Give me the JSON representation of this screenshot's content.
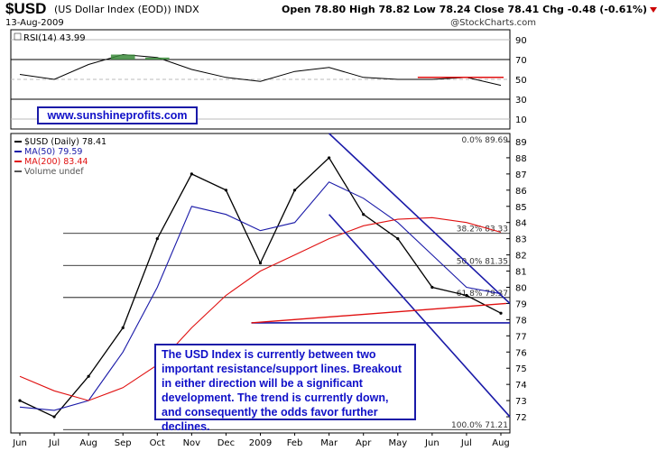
{
  "header": {
    "symbol": "$USD",
    "description": "(US Dollar Index (EOD)) INDX",
    "date": "13-Aug-2009",
    "ohlc_text": "Open 78.80 High 78.82 Low 78.24 Close 78.41 Chg -0.48 (-0.61%)",
    "source": "@StockCharts.com"
  },
  "rsi_panel": {
    "label": "RSI(14) 43.99",
    "ticks": [
      10,
      30,
      50,
      70,
      90
    ],
    "overbought": 70,
    "oversold": 30
  },
  "price_panel": {
    "legend": [
      "$USD (Daily) 78.41",
      "MA(50) 79.59",
      "MA(200) 83.44",
      "Volume undef"
    ],
    "ylim": [
      71,
      89.5
    ],
    "ticks": [
      72,
      73,
      74,
      75,
      76,
      77,
      78,
      79,
      80,
      81,
      82,
      83,
      84,
      85,
      86,
      87,
      88,
      89
    ],
    "x_labels": [
      "Jun",
      "Jul",
      "Aug",
      "Sep",
      "Oct",
      "Nov",
      "Dec",
      "2009",
      "Feb",
      "Mar",
      "Apr",
      "May",
      "Jun",
      "Jul",
      "Aug"
    ],
    "fib_labels": [
      "0.0% 89.69",
      "38.2% 83.33",
      "50.0% 81.35",
      "61.8% 79.37",
      "100.0% 71.21"
    ]
  },
  "url_text": "www.sunshineprofits.com",
  "annotation": "The USD Index is currently between two important resistance/support lines. Breakout in either direction will be a significant development. The trend is currently down, and consequently the odds favor further declines.",
  "colors": {
    "price_line": "#000000",
    "ma50": "#1a1aa8",
    "ma200": "#e01010",
    "trend_lines": "#1a1aa8",
    "support_line": "#e01010",
    "rsi_fill": "#3a8a3a",
    "rsi_resistance": "#e01010"
  },
  "chart_data": {
    "type": "line",
    "title": "$USD (US Dollar Index (EOD)) INDX",
    "x": [
      "Jun",
      "Jul",
      "Aug",
      "Sep",
      "Oct",
      "Nov",
      "Dec",
      "2009",
      "Feb",
      "Mar",
      "Apr",
      "May",
      "Jun",
      "Jul",
      "Aug"
    ],
    "ylim": [
      71,
      89.5
    ],
    "series": [
      {
        "name": "$USD (Daily) 78.41",
        "values": [
          73.0,
          72.0,
          74.5,
          77.5,
          83.0,
          87.0,
          86.0,
          81.5,
          86.0,
          88.0,
          84.5,
          83.0,
          80.0,
          79.5,
          78.4
        ]
      },
      {
        "name": "MA(50) 79.59",
        "values": [
          72.6,
          72.4,
          73.0,
          76.0,
          80.0,
          85.0,
          84.5,
          83.5,
          84.0,
          86.5,
          85.5,
          84.0,
          82.0,
          80.0,
          79.6
        ]
      },
      {
        "name": "MA(200) 83.44",
        "values": [
          74.5,
          73.6,
          73.0,
          73.8,
          75.2,
          77.5,
          79.5,
          81.0,
          82.0,
          83.0,
          83.8,
          84.2,
          84.3,
          84.0,
          83.4
        ]
      }
    ],
    "fibonacci": [
      {
        "label": "0.0%",
        "value": 89.69
      },
      {
        "label": "38.2%",
        "value": 83.33
      },
      {
        "label": "50.0%",
        "value": 81.35
      },
      {
        "label": "61.8%",
        "value": 79.37
      },
      {
        "label": "100.0%",
        "value": 71.21
      }
    ],
    "rsi_values": [
      55,
      50,
      65,
      75,
      72,
      60,
      52,
      48,
      58,
      62,
      52,
      50,
      50,
      52,
      44
    ]
  }
}
